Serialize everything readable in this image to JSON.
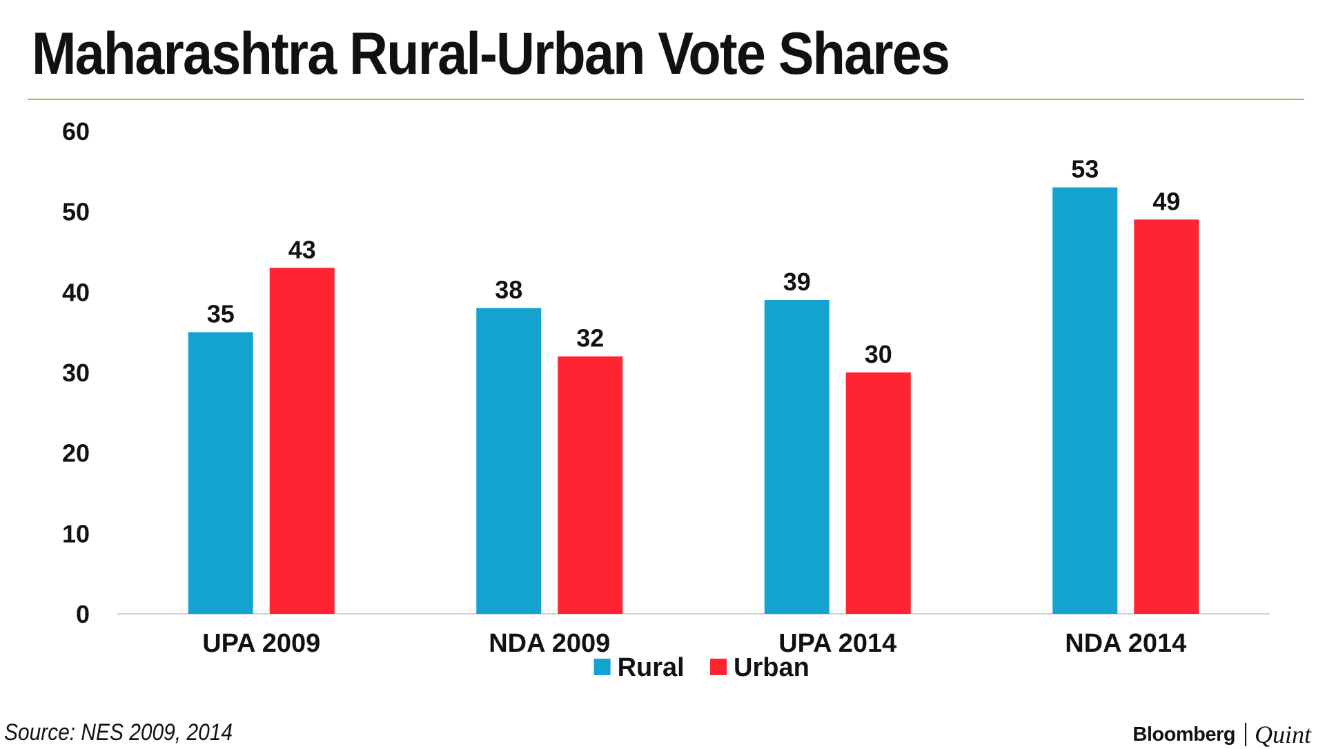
{
  "title": "Maharashtra Rural-Urban Vote Shares",
  "source": "Source: NES 2009, 2014",
  "brand": {
    "primary": "Bloomberg",
    "secondary": "Quint"
  },
  "colors": {
    "rural": "#14a3cf",
    "urban": "#fe2432",
    "rule": "#c8a96e",
    "axis": "#cfcfcf",
    "text": "#111111"
  },
  "chart_data": {
    "type": "bar",
    "title": "Maharashtra Rural-Urban Vote Shares",
    "xlabel": "",
    "ylabel": "",
    "categories": [
      "UPA 2009",
      "NDA 2009",
      "UPA 2014",
      "NDA 2014"
    ],
    "series": [
      {
        "name": "Rural",
        "color": "#14a3cf",
        "values": [
          35,
          38,
          39,
          53
        ]
      },
      {
        "name": "Urban",
        "color": "#fe2432",
        "values": [
          43,
          32,
          30,
          49
        ]
      }
    ],
    "ylim": [
      0,
      60
    ],
    "yticks": [
      0,
      10,
      20,
      30,
      40,
      50,
      60
    ],
    "grid": false,
    "data_labels": true,
    "legend": "bottom-center"
  }
}
